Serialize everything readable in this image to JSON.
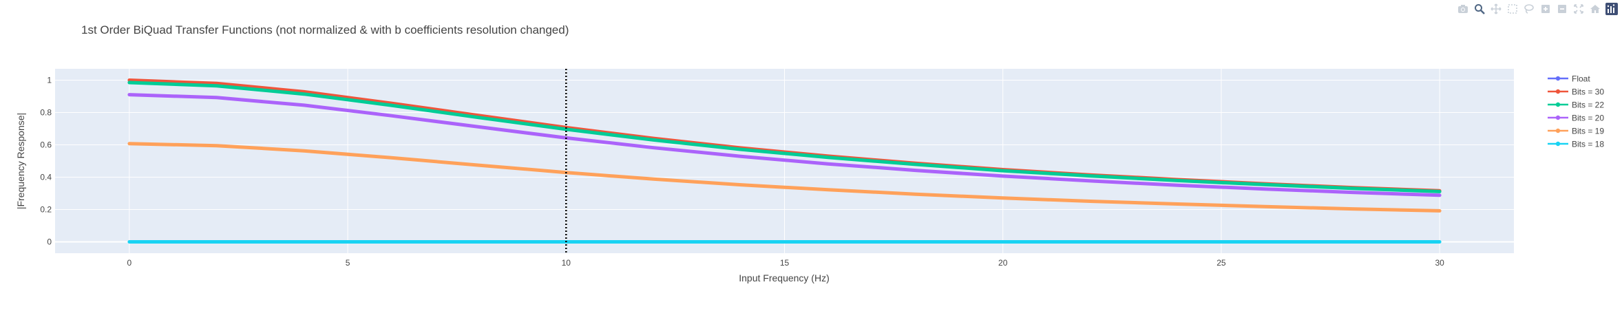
{
  "modebar": {
    "icons": [
      "camera-icon",
      "zoom-icon",
      "pan-icon",
      "box-select-icon",
      "lasso-select-icon",
      "zoom-in-icon",
      "zoom-out-icon",
      "autoscale-icon",
      "reset-axes-icon",
      "plotly-logo-icon"
    ]
  },
  "chart_data": {
    "type": "line",
    "title": "1st Order BiQuad Transfer Functions (not normalized & with b coefficients resolution changed)",
    "xlabel": "Input Frequency (Hz)",
    "ylabel": "|Frequency Response|",
    "xlim": [
      -1.7,
      31.7
    ],
    "ylim": [
      -0.07,
      1.07
    ],
    "x_ticks": [
      0,
      5,
      10,
      15,
      20,
      25,
      30
    ],
    "y_ticks": [
      0,
      0.2,
      0.4,
      0.6,
      0.8,
      1
    ],
    "y_tick_labels": [
      "0",
      "0.2",
      "0.4",
      "0.6",
      "0.8",
      "1"
    ],
    "x_tick_labels": [
      "0",
      "5",
      "10",
      "15",
      "20",
      "25",
      "30"
    ],
    "grid": true,
    "background": "#E5ECF6",
    "legend_position": "right",
    "x": [
      0,
      2,
      4,
      6,
      8,
      10,
      12,
      14,
      16,
      18,
      20,
      22,
      24,
      26,
      28,
      30
    ],
    "vertical_marker": {
      "x": 10,
      "style": "dotted",
      "color": "#000000"
    },
    "series": [
      {
        "name": "Float",
        "color": "#636EFA",
        "width": 2,
        "values": [
          1.0,
          0.98,
          0.928,
          0.857,
          0.781,
          0.707,
          0.64,
          0.581,
          0.53,
          0.486,
          0.447,
          0.414,
          0.385,
          0.359,
          0.336,
          0.316
        ]
      },
      {
        "name": "Bits = 30",
        "color": "#EF553B",
        "width": 5,
        "values": [
          1.0,
          0.98,
          0.928,
          0.857,
          0.781,
          0.707,
          0.64,
          0.581,
          0.53,
          0.486,
          0.447,
          0.414,
          0.385,
          0.359,
          0.336,
          0.316
        ]
      },
      {
        "name": "Bits = 22",
        "color": "#00CC96",
        "width": 5,
        "values": [
          0.985,
          0.965,
          0.914,
          0.844,
          0.769,
          0.696,
          0.63,
          0.572,
          0.522,
          0.479,
          0.44,
          0.408,
          0.379,
          0.354,
          0.331,
          0.311
        ]
      },
      {
        "name": "Bits = 20",
        "color": "#AB63FA",
        "width": 5,
        "values": [
          0.91,
          0.892,
          0.845,
          0.78,
          0.711,
          0.643,
          0.582,
          0.529,
          0.482,
          0.442,
          0.407,
          0.377,
          0.35,
          0.327,
          0.306,
          0.288
        ]
      },
      {
        "name": "Bits = 19",
        "color": "#FFA15A",
        "width": 5,
        "values": [
          0.607,
          0.595,
          0.563,
          0.52,
          0.474,
          0.429,
          0.388,
          0.353,
          0.322,
          0.295,
          0.271,
          0.251,
          0.234,
          0.218,
          0.204,
          0.192
        ]
      },
      {
        "name": "Bits = 18",
        "color": "#19D3F3",
        "width": 5,
        "values": [
          0,
          0,
          0,
          0,
          0,
          0,
          0,
          0,
          0,
          0,
          0,
          0,
          0,
          0,
          0,
          0
        ]
      }
    ]
  }
}
